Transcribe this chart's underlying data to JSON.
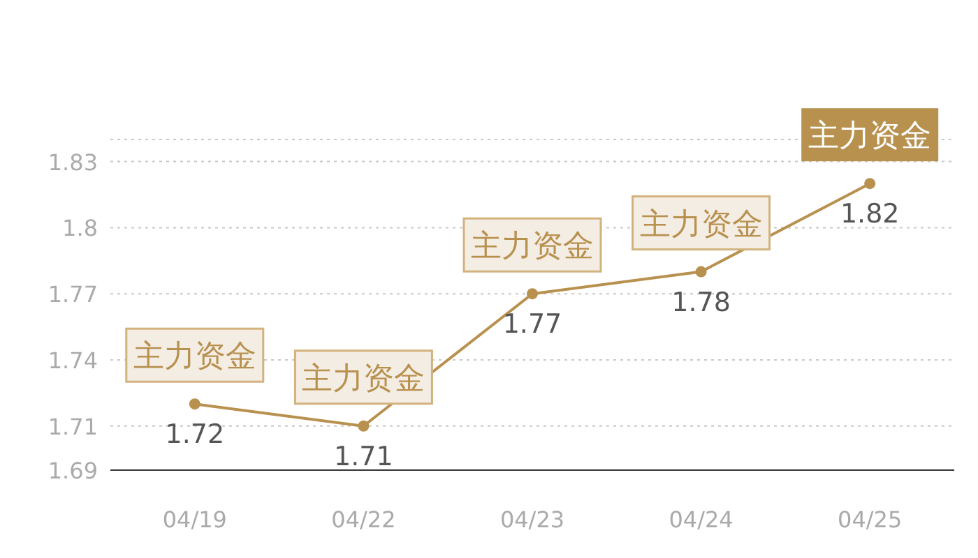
{
  "chart_data": {
    "type": "line",
    "categories": [
      "04/19",
      "04/22",
      "04/23",
      "04/24",
      "04/25"
    ],
    "series": [
      {
        "color": "#b8914f",
        "values": [
          1.72,
          1.71,
          1.77,
          1.78,
          1.82
        ]
      }
    ],
    "ylim": [
      1.69,
      1.84
    ],
    "yticks": [
      1.69,
      1.71,
      1.74,
      1.77,
      1.8,
      1.83,
      {
        "value": 1.84,
        "label": null
      }
    ],
    "grid": "y",
    "marker": "circle",
    "line_style": "solid",
    "data_labels": true,
    "annotations": [
      {
        "text": "主力资金",
        "x": "04/19",
        "y": 1.72
      },
      {
        "text": "主力资金",
        "x": "04/22",
        "y": 1.71
      },
      {
        "text": "主力资金",
        "x": "04/23",
        "y": 1.77
      },
      {
        "text": "主力资金",
        "x": "04/24",
        "y": 1.78
      },
      {
        "text": "主力资金",
        "x": "04/25",
        "y": 1.82
      }
    ]
  }
}
